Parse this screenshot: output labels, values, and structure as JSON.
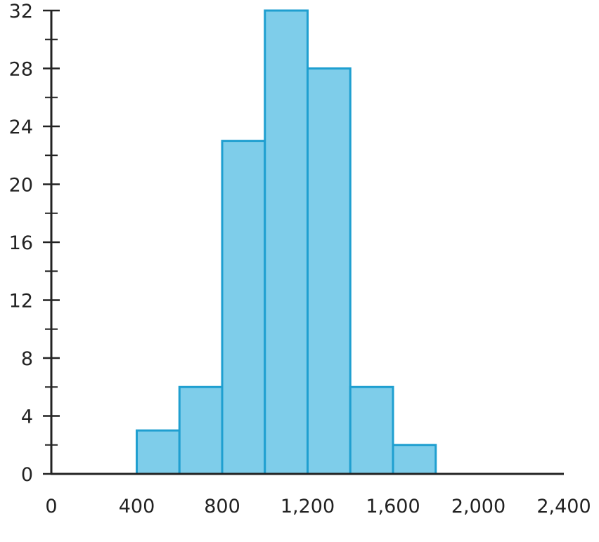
{
  "chart_data": {
    "type": "bar",
    "histogram": true,
    "title": "",
    "xlabel": "",
    "ylabel": "",
    "bins": [
      {
        "start": 400,
        "end": 600,
        "value": 3
      },
      {
        "start": 600,
        "end": 800,
        "value": 6
      },
      {
        "start": 800,
        "end": 1000,
        "value": 23
      },
      {
        "start": 1000,
        "end": 1200,
        "value": 32
      },
      {
        "start": 1200,
        "end": 1400,
        "value": 28
      },
      {
        "start": 1400,
        "end": 1600,
        "value": 6
      },
      {
        "start": 1600,
        "end": 1800,
        "value": 2
      }
    ],
    "xlim": [
      0,
      2400
    ],
    "ylim": [
      0,
      32
    ],
    "x_ticks": [
      0,
      400,
      800,
      1200,
      1600,
      2000,
      2400
    ],
    "x_tick_labels": [
      "0",
      "400",
      "800",
      "1,200",
      "1,600",
      "2,000",
      "2,400"
    ],
    "y_ticks": [
      0,
      4,
      8,
      12,
      16,
      20,
      24,
      28,
      32
    ],
    "y_tick_labels": [
      "0",
      "4",
      "8",
      "12",
      "16",
      "20",
      "24",
      "28",
      "32"
    ],
    "y_minor_tick_step": 2,
    "grid": false,
    "colors": {
      "bar_fill": "#7ecdea",
      "bar_stroke": "#1f9fd0",
      "axis": "#222222"
    }
  }
}
